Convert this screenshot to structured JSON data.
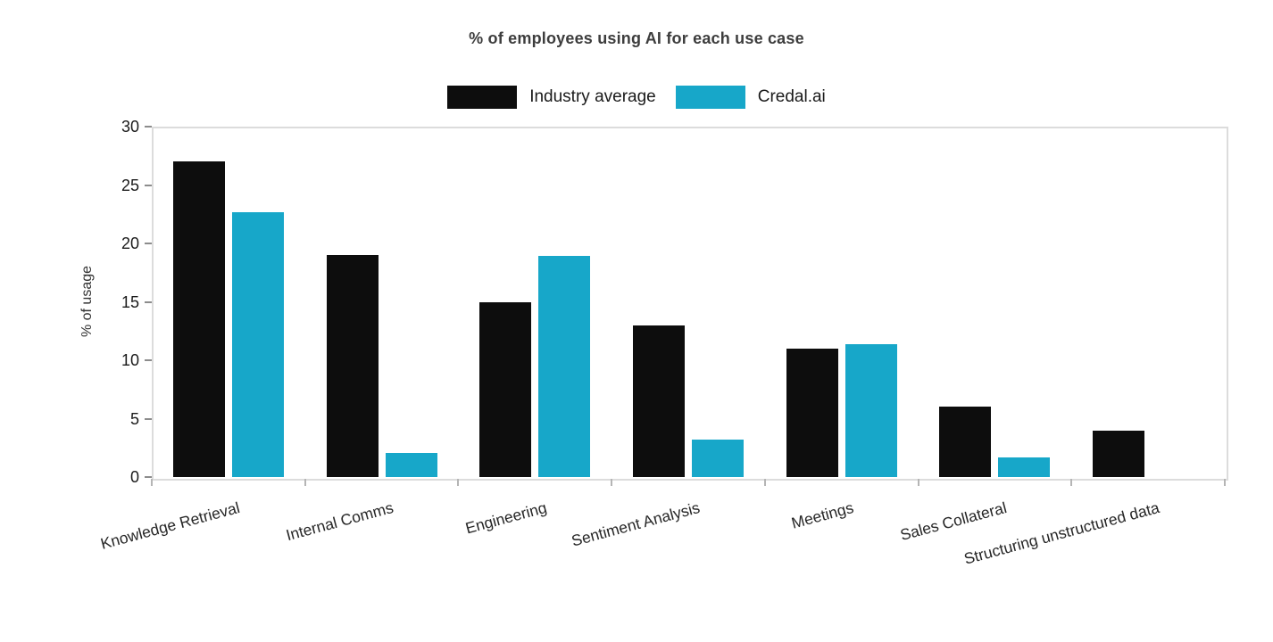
{
  "chart_data": {
    "type": "bar",
    "title": "% of employees using AI for each use case",
    "ylabel": "% of usage",
    "xlabel": "",
    "ylim": [
      0,
      30
    ],
    "yticks": [
      0,
      5,
      10,
      15,
      20,
      25,
      30
    ],
    "grid": false,
    "legend_position": "top-center",
    "categories": [
      "Knowledge Retrieval",
      "Internal Comms",
      "Engineering",
      "Sentiment Analysis",
      "Meetings",
      "Sales Collateral",
      "Structuring unstructured data"
    ],
    "series": [
      {
        "name": "Industry average",
        "color": "#0d0d0d",
        "values": [
          27,
          19,
          15,
          13,
          11,
          6,
          4
        ]
      },
      {
        "name": "Credal.ai",
        "color": "#17a7c9",
        "values": [
          22.7,
          2.1,
          18.9,
          3.2,
          11.4,
          1.7,
          0
        ]
      }
    ]
  }
}
